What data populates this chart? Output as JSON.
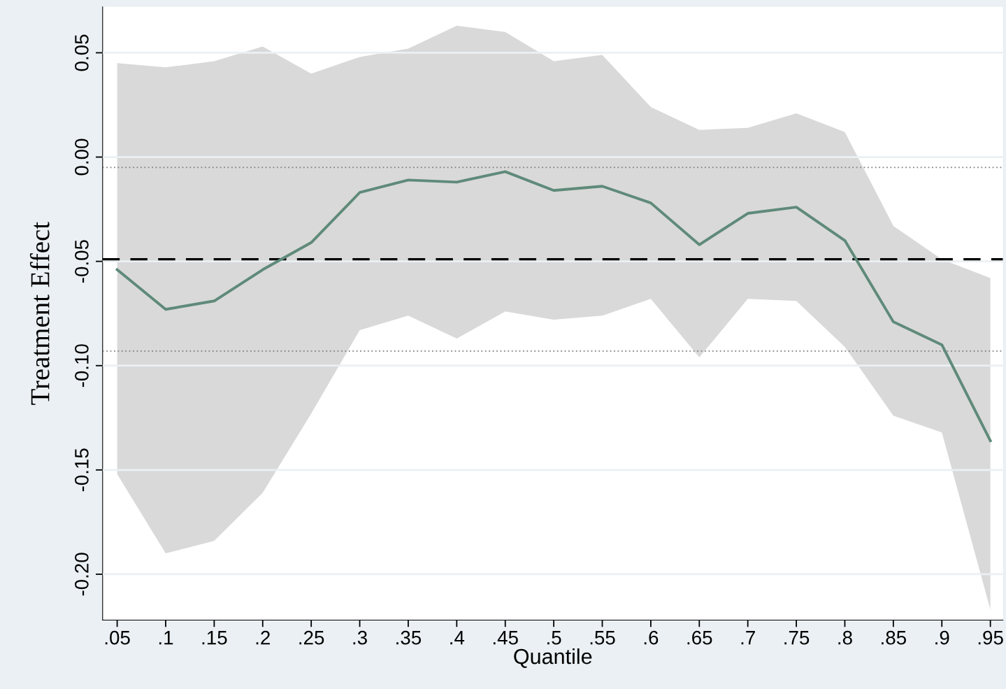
{
  "chart_data": {
    "type": "line",
    "xlabel": "Quantile",
    "ylabel": "Treatment Effect",
    "x": [
      0.05,
      0.1,
      0.15,
      0.2,
      0.25,
      0.3,
      0.35,
      0.4,
      0.45,
      0.5,
      0.55,
      0.6,
      0.65,
      0.7,
      0.75,
      0.8,
      0.85,
      0.9,
      0.95
    ],
    "series": [
      {
        "color": "#5f8a7a",
        "values": [
          -0.054,
          -0.073,
          -0.069,
          -0.054,
          -0.041,
          -0.017,
          -0.011,
          -0.012,
          -0.007,
          -0.016,
          -0.014,
          -0.022,
          -0.042,
          -0.027,
          -0.024,
          -0.04,
          -0.079,
          -0.09,
          -0.136
        ],
        "lower": [
          -0.152,
          -0.19,
          -0.184,
          -0.161,
          -0.123,
          -0.083,
          -0.076,
          -0.087,
          -0.074,
          -0.078,
          -0.076,
          -0.068,
          -0.096,
          -0.068,
          -0.069,
          -0.091,
          -0.124,
          -0.132,
          -0.217
        ],
        "upper": [
          0.045,
          0.043,
          0.046,
          0.053,
          0.04,
          0.048,
          0.052,
          0.063,
          0.06,
          0.046,
          0.049,
          0.024,
          0.013,
          0.014,
          0.021,
          0.012,
          -0.033,
          -0.049,
          -0.058
        ]
      }
    ],
    "ref_lines": [
      {
        "axis": "y",
        "value": -0.005,
        "color": "#7f7f7f",
        "line_style": "dotted"
      },
      {
        "axis": "y",
        "value": -0.049,
        "color": "#000000",
        "line_style": "dashed"
      },
      {
        "axis": "y",
        "value": -0.093,
        "color": "#7f7f7f",
        "line_style": "dotted"
      }
    ],
    "xlim": [
      0.035,
      0.963
    ],
    "ylim": [
      -0.222,
      0.072
    ],
    "xticks": [
      {
        "value": 0.05,
        "label": ".05"
      },
      {
        "value": 0.1,
        "label": ".1"
      },
      {
        "value": 0.15,
        "label": ".15"
      },
      {
        "value": 0.2,
        "label": ".2"
      },
      {
        "value": 0.25,
        "label": ".25"
      },
      {
        "value": 0.3,
        "label": ".3"
      },
      {
        "value": 0.35,
        "label": ".35"
      },
      {
        "value": 0.4,
        "label": ".4"
      },
      {
        "value": 0.45,
        "label": ".45"
      },
      {
        "value": 0.5,
        "label": ".5"
      },
      {
        "value": 0.55,
        "label": ".55"
      },
      {
        "value": 0.6,
        "label": ".6"
      },
      {
        "value": 0.65,
        "label": ".65"
      },
      {
        "value": 0.7,
        "label": ".7"
      },
      {
        "value": 0.75,
        "label": ".75"
      },
      {
        "value": 0.8,
        "label": ".8"
      },
      {
        "value": 0.85,
        "label": ".85"
      },
      {
        "value": 0.9,
        "label": ".9"
      },
      {
        "value": 0.95,
        "label": ".95"
      }
    ],
    "yticks": [
      {
        "value": -0.2,
        "label": "-0.20"
      },
      {
        "value": -0.15,
        "label": "-0.15"
      },
      {
        "value": -0.1,
        "label": "-0.10"
      },
      {
        "value": -0.05,
        "label": "-0.05"
      },
      {
        "value": 0,
        "label": "0.00"
      },
      {
        "value": 0.05,
        "label": "0.05"
      }
    ],
    "grid": "y",
    "marker": "none",
    "line_style": "solid",
    "legend": false
  }
}
